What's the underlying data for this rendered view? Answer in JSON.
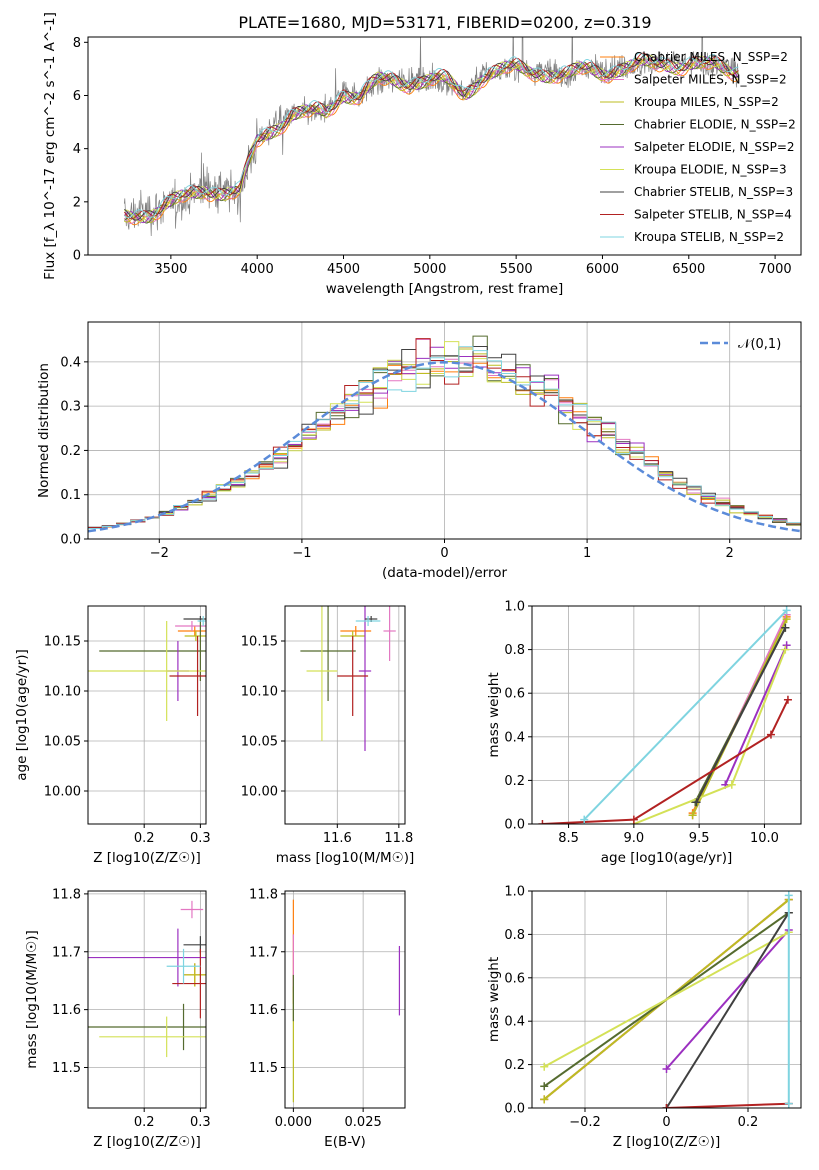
{
  "figure_title": "PLATE=1680, MJD=53171, FIBERID=0200, z=0.319",
  "colors": {
    "data": "#808080",
    "models": [
      "#ff7f0e",
      "#e377c2",
      "#bcbd22",
      "#556b2f",
      "#9b30c0",
      "#d4e157",
      "#404040",
      "#b22222",
      "#7fd4e0"
    ],
    "normal": "#5b8bd9"
  },
  "chart_data": [
    {
      "id": "spectrum",
      "type": "line",
      "xlabel": "wavelength [Angstrom, rest frame]",
      "ylabel": "Flux [f_λ 10^-17 erg cm^-2 s^-1 A^-1]",
      "xlim": [
        3020,
        7150
      ],
      "ylim": [
        0,
        8.2
      ],
      "xticks": [
        3500,
        4000,
        4500,
        5000,
        5500,
        6000,
        6500,
        7000
      ],
      "yticks": [
        0,
        2,
        4,
        6,
        8
      ],
      "grid": false,
      "legend_position": "top-right",
      "legend": [
        "Chabrier MILES, N_SSP=2",
        "Salpeter MILES, N_SSP=2",
        "Kroupa MILES, N_SSP=2",
        "Chabrier ELODIE, N_SSP=2",
        "Salpeter ELODIE, N_SSP=2",
        "Kroupa ELODIE, N_SSP=3",
        "Chabrier STELIB, N_SSP=3",
        "Salpeter STELIB, N_SSP=4",
        "Kroupa STELIB, N_SSP=2"
      ],
      "continuum": {
        "x": [
          3220,
          3300,
          3400,
          3500,
          3600,
          3700,
          3800,
          3900,
          3950,
          4000,
          4100,
          4200,
          4300,
          4400,
          4500,
          4600,
          4700,
          4800,
          4900,
          5000,
          5100,
          5200,
          5300,
          5400,
          5500,
          5600,
          5700,
          5800,
          5900,
          6000,
          6200,
          6400,
          6600,
          6800
        ],
        "y": [
          1.4,
          1.6,
          1.7,
          1.9,
          2.2,
          2.6,
          2.4,
          2.3,
          3.4,
          4.3,
          4.9,
          5.3,
          5.3,
          5.4,
          6.2,
          6.0,
          6.5,
          6.6,
          6.6,
          6.6,
          6.5,
          6.1,
          6.8,
          6.9,
          7.0,
          7.0,
          6.9,
          6.7,
          7.0,
          7.0,
          7.1,
          7.3,
          7.1,
          7.0
        ]
      },
      "data_range": [
        3230,
        6790
      ]
    },
    {
      "id": "residuals",
      "type": "histogram",
      "xlabel": "(data-model)/error",
      "ylabel": "Normed distribution",
      "xlim": [
        -2.5,
        2.5
      ],
      "ylim": [
        0,
        0.49
      ],
      "xticks": [
        -2,
        -1,
        0,
        1,
        2
      ],
      "yticks": [
        0.0,
        0.1,
        0.2,
        0.3,
        0.4
      ],
      "grid": true,
      "legend_position": "top-right",
      "legend": [
        "𝒩(0,1)"
      ],
      "bin_width": 0.1,
      "center_mean": 0.1
    },
    {
      "id": "age_vs_Z",
      "type": "scatter",
      "xlabel": "Z [log10(Z/Z☉)]",
      "ylabel": "age  [log10(age/yr)]",
      "xlim": [
        0.1,
        0.31
      ],
      "ylim": [
        9.967,
        10.185
      ],
      "xticks": [
        0.2,
        0.3
      ],
      "yticks": [
        10.0,
        10.05,
        10.1,
        10.15
      ],
      "grid": true,
      "points": [
        {
          "x": 0.29,
          "y": 10.16,
          "xerr": 0.03,
          "yerr": 0.005
        },
        {
          "x": 0.285,
          "y": 10.165,
          "xerr": 0.03,
          "yerr": 0.005
        },
        {
          "x": 0.292,
          "y": 10.155,
          "xerr": 0.02,
          "yerr": 0.005
        },
        {
          "x": 0.3,
          "y": 10.14,
          "xerr": 0.18,
          "yerr": 0.03
        },
        {
          "x": 0.26,
          "y": 10.12,
          "xerr": 0.02,
          "yerr": 0.03
        },
        {
          "x": 0.24,
          "y": 10.12,
          "xerr": 0.14,
          "yerr": 0.05
        },
        {
          "x": 0.3,
          "y": 10.172,
          "xerr": 0.03,
          "yerr": 0.003
        },
        {
          "x": 0.295,
          "y": 10.115,
          "xerr": 0.05,
          "yerr": 0.04
        },
        {
          "x": 0.305,
          "y": 10.17,
          "xerr": 0.01,
          "yerr": 0.005
        }
      ]
    },
    {
      "id": "age_vs_mass",
      "type": "scatter",
      "xlabel": "mass [log10(M/M☉)]",
      "ylabel": "",
      "xlim": [
        11.43,
        11.82
      ],
      "ylim": [
        9.967,
        10.185
      ],
      "xticks": [
        11.6,
        11.8
      ],
      "yticks": [
        10.0,
        10.05,
        10.1,
        10.15
      ],
      "grid": true,
      "points": [
        {
          "x": 11.66,
          "y": 10.16,
          "xerr": 0.05,
          "yerr": 0.005
        },
        {
          "x": 11.77,
          "y": 10.16,
          "xerr": 0.02,
          "yerr": 0.03
        },
        {
          "x": 11.65,
          "y": 10.155,
          "xerr": 0.04,
          "yerr": 0.005
        },
        {
          "x": 11.57,
          "y": 10.14,
          "xerr": 0.09,
          "yerr": 0.05
        },
        {
          "x": 11.69,
          "y": 10.12,
          "xerr": 0.02,
          "yerr": 0.08
        },
        {
          "x": 11.55,
          "y": 10.12,
          "xerr": 0.05,
          "yerr": 0.07
        },
        {
          "x": 11.71,
          "y": 10.172,
          "xerr": 0.02,
          "yerr": 0.003
        },
        {
          "x": 11.65,
          "y": 10.115,
          "xerr": 0.05,
          "yerr": 0.04
        },
        {
          "x": 11.7,
          "y": 10.17,
          "xerr": 0.04,
          "yerr": 0.005
        }
      ]
    },
    {
      "id": "mass_weight_vs_age",
      "type": "line",
      "xlabel": "age  [log10(age/yr)]",
      "ylabel": "mass weight",
      "xlim": [
        8.22,
        10.28
      ],
      "ylim": [
        0,
        1.0
      ],
      "xticks": [
        8.5,
        9.0,
        9.5,
        10.0
      ],
      "yticks": [
        0.0,
        0.2,
        0.4,
        0.6,
        0.8,
        1.0
      ],
      "grid": true,
      "series": [
        {
          "x": [
            9.45,
            10.17
          ],
          "y": [
            0.05,
            0.95
          ]
        },
        {
          "x": [
            9.45,
            10.17
          ],
          "y": [
            0.04,
            0.96
          ]
        },
        {
          "x": [
            9.45,
            10.17
          ],
          "y": [
            0.04,
            0.94
          ]
        },
        {
          "x": [
            9.47,
            10.16
          ],
          "y": [
            0.1,
            0.9
          ]
        },
        {
          "x": [
            9.7,
            10.17
          ],
          "y": [
            0.18,
            0.82
          ]
        },
        {
          "x": [
            9.0,
            9.75,
            10.16
          ],
          "y": [
            0.0,
            0.18,
            0.8
          ]
        },
        {
          "x": [
            9.48,
            10.16
          ],
          "y": [
            0.1,
            0.9
          ]
        },
        {
          "x": [
            8.3,
            9.0,
            10.05,
            10.18
          ],
          "y": [
            0.0,
            0.02,
            0.41,
            0.57
          ]
        },
        {
          "x": [
            8.62,
            10.17
          ],
          "y": [
            0.02,
            0.98
          ]
        }
      ]
    },
    {
      "id": "mass_vs_Z",
      "type": "scatter",
      "xlabel": "Z [log10(Z/Z☉)]",
      "ylabel": "mass [log10(M/M☉)]",
      "xlim": [
        0.1,
        0.31
      ],
      "ylim": [
        11.43,
        11.805
      ],
      "xticks": [
        0.2,
        0.3
      ],
      "yticks": [
        11.5,
        11.6,
        11.7,
        11.8
      ],
      "grid": true,
      "points": [
        {
          "x": 0.29,
          "y": 11.66,
          "xerr": 0.02,
          "yerr": 0.02
        },
        {
          "x": 0.285,
          "y": 11.773,
          "xerr": 0.02,
          "yerr": 0.015
        },
        {
          "x": 0.29,
          "y": 11.66,
          "xerr": 0.02,
          "yerr": 0.02
        },
        {
          "x": 0.27,
          "y": 11.57,
          "xerr": 0.17,
          "yerr": 0.04
        },
        {
          "x": 0.26,
          "y": 11.69,
          "xerr": 0.18,
          "yerr": 0.05
        },
        {
          "x": 0.24,
          "y": 11.553,
          "xerr": 0.12,
          "yerr": 0.035
        },
        {
          "x": 0.3,
          "y": 11.712,
          "xerr": 0.03,
          "yerr": 0.015
        },
        {
          "x": 0.3,
          "y": 11.645,
          "xerr": 0.05,
          "yerr": 0.06
        },
        {
          "x": 0.27,
          "y": 11.675,
          "xerr": 0.03,
          "yerr": 0.03
        }
      ]
    },
    {
      "id": "mass_vs_ebv",
      "type": "scatter",
      "xlabel": "E(B-V)",
      "ylabel": "",
      "xlim": [
        -0.003,
        0.04
      ],
      "ylim": [
        11.43,
        11.805
      ],
      "xticks": [
        0.0,
        0.025
      ],
      "yticks": [
        11.5,
        11.6,
        11.7,
        11.8
      ],
      "grid": true,
      "points": [
        {
          "x": 0.0,
          "y": 11.7,
          "yerr": 0.09
        },
        {
          "x": 0.0,
          "y": 11.68,
          "yerr": 0.05
        },
        {
          "x": 0.0,
          "y": 11.54,
          "yerr": 0.1
        },
        {
          "x": 0.0,
          "y": 11.62,
          "yerr": 0.04
        },
        {
          "x": 0.038,
          "y": 11.65,
          "yerr": 0.06
        }
      ]
    },
    {
      "id": "mass_weight_vs_Z",
      "type": "line",
      "xlabel": "Z [log10(Z/Z☉)]",
      "ylabel": "mass weight",
      "xlim": [
        -0.33,
        0.33
      ],
      "ylim": [
        0,
        1.0
      ],
      "xticks": [
        -0.2,
        0.0,
        0.2
      ],
      "yticks": [
        0.0,
        0.2,
        0.4,
        0.6,
        0.8,
        1.0
      ],
      "grid": true,
      "series": [
        {
          "x": [
            -0.3,
            0.3
          ],
          "y": [
            0.04,
            0.96
          ]
        },
        {
          "x": [
            -0.3,
            0.3
          ],
          "y": [
            0.04,
            0.96
          ]
        },
        {
          "x": [
            -0.3,
            0.3
          ],
          "y": [
            0.04,
            0.96
          ]
        },
        {
          "x": [
            -0.3,
            0.3
          ],
          "y": [
            0.1,
            0.9
          ]
        },
        {
          "x": [
            0.0,
            0.3
          ],
          "y": [
            0.18,
            0.82
          ]
        },
        {
          "x": [
            -0.3,
            0.3
          ],
          "y": [
            0.19,
            0.81
          ]
        },
        {
          "x": [
            0.0,
            0.3
          ],
          "y": [
            0.0,
            0.9
          ]
        },
        {
          "x": [
            0.0,
            0.3
          ],
          "y": [
            0.0,
            0.02
          ]
        },
        {
          "x": [
            0.3,
            0.3
          ],
          "y": [
            0.02,
            0.98
          ]
        }
      ]
    }
  ]
}
